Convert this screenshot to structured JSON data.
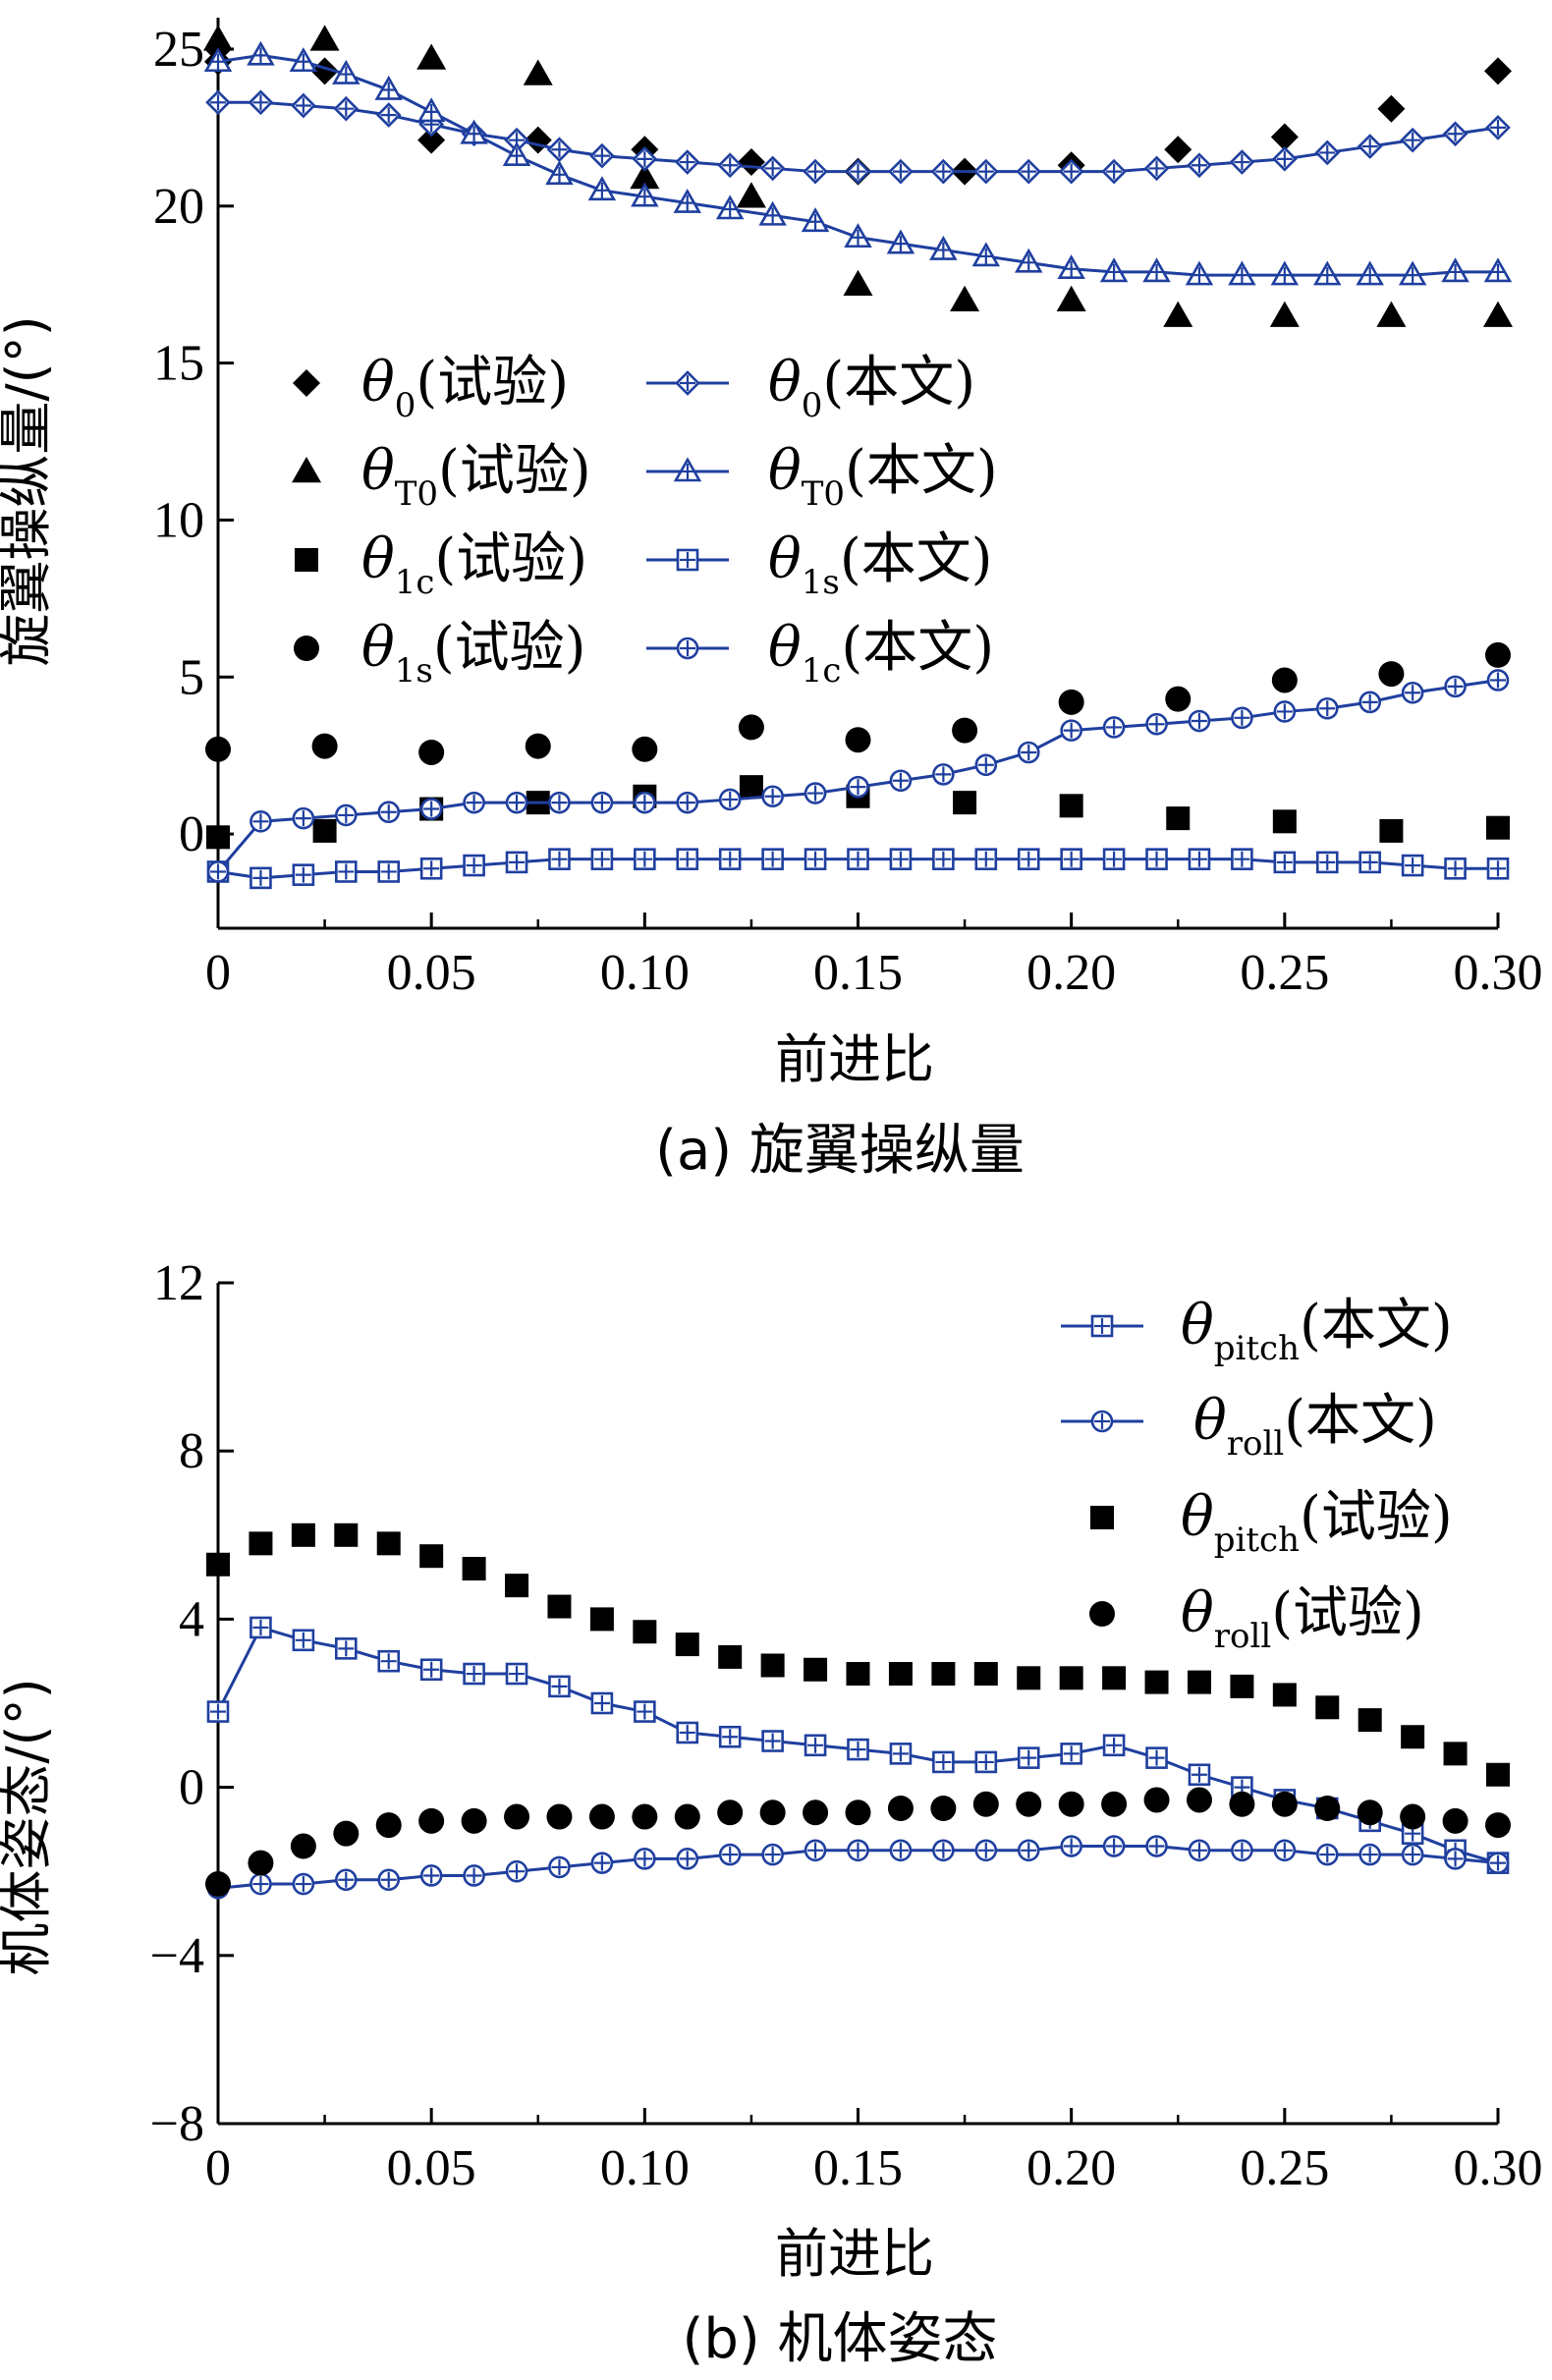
{
  "colors": {
    "model": "#1f3f9f",
    "test": "#000000"
  },
  "charts": [
    {
      "xlabel": "前进比",
      "ylabel": "旋翼操纵量/(°)",
      "caption": "(a) 旋翼操纵量",
      "xticks": [
        "0",
        "0.05",
        "0.10",
        "0.15",
        "0.20",
        "0.25",
        "0.30"
      ],
      "yticks": [
        "0",
        "5",
        "10",
        "15",
        "20",
        "25"
      ],
      "legend": [
        {
          "sym": "θ",
          "sub": "0",
          "suffix": "(试验)"
        },
        {
          "sym": "θ",
          "sub": "T0",
          "suffix": "(试验)"
        },
        {
          "sym": "θ",
          "sub": "1c",
          "suffix": "(试验)"
        },
        {
          "sym": "θ",
          "sub": "1s",
          "suffix": "(试验)"
        },
        {
          "sym": "θ",
          "sub": "0",
          "suffix": "(本文)"
        },
        {
          "sym": "θ",
          "sub": "T0",
          "suffix": "(本文)"
        },
        {
          "sym": "θ",
          "sub": "1s",
          "suffix": "(本文)"
        },
        {
          "sym": "θ",
          "sub": "1c",
          "suffix": "(本文)"
        }
      ]
    },
    {
      "xlabel": "前进比",
      "ylabel": "机体姿态/(°)",
      "caption": "(b) 机体姿态",
      "xticks": [
        "0",
        "0.05",
        "0.10",
        "0.15",
        "0.20",
        "0.25",
        "0.30"
      ],
      "yticks": [
        "−8",
        "−4",
        "0",
        "4",
        "8",
        "12"
      ],
      "legend": [
        {
          "sym": "θ",
          "sub": "pitch",
          "suffix": "(本文)"
        },
        {
          "sym": "θ",
          "sub": "roll",
          "suffix": "(本文)"
        },
        {
          "sym": "θ",
          "sub": "pitch",
          "suffix": "(试验)"
        },
        {
          "sym": "θ",
          "sub": "roll",
          "suffix": "(试验)"
        }
      ]
    }
  ],
  "chart_data": [
    {
      "type": "line",
      "xlabel": "前进比",
      "ylabel": "旋翼操纵量/(°)",
      "xlim": [
        0,
        0.3
      ],
      "ylim": [
        -3,
        26
      ],
      "series": [
        {
          "name": "θ0(试验)",
          "kind": "scatter",
          "marker": "diamond",
          "x": [
            0,
            0,
            0.025,
            0.05,
            0.075,
            0.1,
            0.125,
            0.15,
            0.175,
            0.2,
            0.225,
            0.25,
            0.275,
            0.3
          ],
          "y": [
            25.0,
            24.6,
            24.3,
            22.1,
            22.1,
            21.8,
            21.4,
            21.1,
            21.1,
            21.3,
            21.8,
            22.2,
            23.1,
            24.3
          ]
        },
        {
          "name": "θT0(试验)",
          "kind": "scatter",
          "marker": "triangle",
          "x": [
            0,
            0.025,
            0.05,
            0.075,
            0.1,
            0.125,
            0.15,
            0.175,
            0.2,
            0.225,
            0.25,
            0.275,
            0.3
          ],
          "y": [
            25.3,
            25.3,
            24.7,
            24.2,
            20.9,
            20.3,
            17.5,
            17.0,
            17.0,
            16.5,
            16.5,
            16.5,
            16.5
          ]
        },
        {
          "name": "θ1c(试验)",
          "kind": "scatter",
          "marker": "square",
          "x": [
            0,
            0.025,
            0.05,
            0.075,
            0.1,
            0.125,
            0.15,
            0.175,
            0.2,
            0.225,
            0.25,
            0.275,
            0.3
          ],
          "y": [
            -0.1,
            0.1,
            0.8,
            1.0,
            1.2,
            1.5,
            1.2,
            1.0,
            0.9,
            0.5,
            0.4,
            0.1,
            0.2
          ]
        },
        {
          "name": "θ1s(试验)",
          "kind": "scatter",
          "marker": "circle",
          "x": [
            0,
            0.025,
            0.05,
            0.075,
            0.1,
            0.125,
            0.15,
            0.175,
            0.2,
            0.225,
            0.25,
            0.275,
            0.3
          ],
          "y": [
            2.7,
            2.8,
            2.6,
            2.8,
            2.7,
            3.4,
            3.0,
            3.3,
            4.2,
            4.3,
            4.9,
            5.1,
            5.7
          ]
        },
        {
          "name": "θ0(本文)",
          "kind": "line",
          "marker": "diamond-plus",
          "x": [
            0,
            0.01,
            0.02,
            0.03,
            0.04,
            0.05,
            0.06,
            0.07,
            0.08,
            0.09,
            0.1,
            0.11,
            0.12,
            0.13,
            0.14,
            0.15,
            0.16,
            0.17,
            0.18,
            0.19,
            0.2,
            0.21,
            0.22,
            0.23,
            0.24,
            0.25,
            0.26,
            0.27,
            0.28,
            0.29,
            0.3
          ],
          "y": [
            23.3,
            23.3,
            23.2,
            23.1,
            22.9,
            22.6,
            22.3,
            22.1,
            21.8,
            21.6,
            21.5,
            21.4,
            21.3,
            21.2,
            21.1,
            21.1,
            21.1,
            21.1,
            21.1,
            21.1,
            21.1,
            21.1,
            21.2,
            21.3,
            21.4,
            21.5,
            21.7,
            21.9,
            22.1,
            22.3,
            22.5
          ]
        },
        {
          "name": "θT0(本文)",
          "kind": "line",
          "marker": "triangle-plus",
          "x": [
            0,
            0.01,
            0.02,
            0.03,
            0.04,
            0.05,
            0.06,
            0.07,
            0.08,
            0.09,
            0.1,
            0.11,
            0.12,
            0.13,
            0.14,
            0.15,
            0.16,
            0.17,
            0.18,
            0.19,
            0.2,
            0.21,
            0.22,
            0.23,
            0.24,
            0.25,
            0.26,
            0.27,
            0.28,
            0.29,
            0.3
          ],
          "y": [
            24.6,
            24.8,
            24.6,
            24.2,
            23.7,
            23.0,
            22.3,
            21.6,
            21.0,
            20.5,
            20.3,
            20.1,
            19.9,
            19.7,
            19.5,
            19.0,
            18.8,
            18.6,
            18.4,
            18.2,
            18.0,
            17.9,
            17.9,
            17.8,
            17.8,
            17.8,
            17.8,
            17.8,
            17.8,
            17.9,
            17.9
          ]
        },
        {
          "name": "θ1s(本文)",
          "kind": "line",
          "marker": "square-plus",
          "x": [
            0,
            0.01,
            0.02,
            0.03,
            0.04,
            0.05,
            0.06,
            0.07,
            0.08,
            0.09,
            0.1,
            0.11,
            0.12,
            0.13,
            0.14,
            0.15,
            0.16,
            0.17,
            0.18,
            0.19,
            0.2,
            0.21,
            0.22,
            0.23,
            0.24,
            0.25,
            0.26,
            0.27,
            0.28,
            0.29,
            0.3
          ],
          "y": [
            -1.2,
            -1.4,
            -1.3,
            -1.2,
            -1.2,
            -1.1,
            -1.0,
            -0.9,
            -0.8,
            -0.8,
            -0.8,
            -0.8,
            -0.8,
            -0.8,
            -0.8,
            -0.8,
            -0.8,
            -0.8,
            -0.8,
            -0.8,
            -0.8,
            -0.8,
            -0.8,
            -0.8,
            -0.8,
            -0.9,
            -0.9,
            -0.9,
            -1.0,
            -1.1,
            -1.1
          ]
        },
        {
          "name": "θ1c(本文)",
          "kind": "line",
          "marker": "circle-plus",
          "x": [
            0,
            0.01,
            0.02,
            0.03,
            0.04,
            0.05,
            0.06,
            0.07,
            0.08,
            0.09,
            0.1,
            0.11,
            0.12,
            0.13,
            0.14,
            0.15,
            0.16,
            0.17,
            0.18,
            0.19,
            0.2,
            0.21,
            0.22,
            0.23,
            0.24,
            0.25,
            0.26,
            0.27,
            0.28,
            0.29,
            0.3
          ],
          "y": [
            -1.2,
            0.4,
            0.5,
            0.6,
            0.7,
            0.8,
            1.0,
            1.0,
            1.0,
            1.0,
            1.0,
            1.0,
            1.1,
            1.2,
            1.3,
            1.5,
            1.7,
            1.9,
            2.2,
            2.6,
            3.3,
            3.4,
            3.5,
            3.6,
            3.7,
            3.9,
            4.0,
            4.2,
            4.5,
            4.7,
            4.9
          ]
        }
      ]
    },
    {
      "type": "line",
      "xlabel": "前进比",
      "ylabel": "机体姿态/(°)",
      "xlim": [
        0,
        0.3
      ],
      "ylim": [
        -8,
        12
      ],
      "series": [
        {
          "name": "θpitch(本文)",
          "kind": "line",
          "marker": "square-plus",
          "x": [
            0,
            0.01,
            0.02,
            0.03,
            0.04,
            0.05,
            0.06,
            0.07,
            0.08,
            0.09,
            0.1,
            0.11,
            0.12,
            0.13,
            0.14,
            0.15,
            0.16,
            0.17,
            0.18,
            0.19,
            0.2,
            0.21,
            0.22,
            0.23,
            0.24,
            0.25,
            0.26,
            0.27,
            0.28,
            0.29,
            0.3
          ],
          "y": [
            1.8,
            3.8,
            3.5,
            3.3,
            3.0,
            2.8,
            2.7,
            2.7,
            2.4,
            2.0,
            1.8,
            1.3,
            1.2,
            1.1,
            1.0,
            0.9,
            0.8,
            0.6,
            0.6,
            0.7,
            0.8,
            1.0,
            0.7,
            0.3,
            0.0,
            -0.3,
            -0.5,
            -0.8,
            -1.1,
            -1.5,
            -1.8
          ]
        },
        {
          "name": "θroll(本文)",
          "kind": "line",
          "marker": "circle-plus",
          "x": [
            0,
            0.01,
            0.02,
            0.03,
            0.04,
            0.05,
            0.06,
            0.07,
            0.08,
            0.09,
            0.1,
            0.11,
            0.12,
            0.13,
            0.14,
            0.15,
            0.16,
            0.17,
            0.18,
            0.19,
            0.2,
            0.21,
            0.22,
            0.23,
            0.24,
            0.25,
            0.26,
            0.27,
            0.28,
            0.29,
            0.3
          ],
          "y": [
            -2.4,
            -2.3,
            -2.3,
            -2.2,
            -2.2,
            -2.1,
            -2.1,
            -2.0,
            -1.9,
            -1.8,
            -1.7,
            -1.7,
            -1.6,
            -1.6,
            -1.5,
            -1.5,
            -1.5,
            -1.5,
            -1.5,
            -1.5,
            -1.4,
            -1.4,
            -1.4,
            -1.5,
            -1.5,
            -1.5,
            -1.6,
            -1.6,
            -1.6,
            -1.7,
            -1.8
          ]
        },
        {
          "name": "θpitch(试验)",
          "kind": "scatter",
          "marker": "square",
          "x": [
            0,
            0.01,
            0.02,
            0.03,
            0.04,
            0.05,
            0.06,
            0.07,
            0.08,
            0.09,
            0.1,
            0.11,
            0.12,
            0.13,
            0.14,
            0.15,
            0.16,
            0.17,
            0.18,
            0.19,
            0.2,
            0.21,
            0.22,
            0.23,
            0.24,
            0.25,
            0.26,
            0.27,
            0.28,
            0.29,
            0.3
          ],
          "y": [
            5.3,
            5.8,
            6.0,
            6.0,
            5.8,
            5.5,
            5.2,
            4.8,
            4.3,
            4.0,
            3.7,
            3.4,
            3.1,
            2.9,
            2.8,
            2.7,
            2.7,
            2.7,
            2.7,
            2.6,
            2.6,
            2.6,
            2.5,
            2.5,
            2.4,
            2.2,
            1.9,
            1.6,
            1.2,
            0.8,
            0.3
          ]
        },
        {
          "name": "θroll(试验)",
          "kind": "scatter",
          "marker": "circle",
          "x": [
            0,
            0.01,
            0.02,
            0.03,
            0.04,
            0.05,
            0.06,
            0.07,
            0.08,
            0.09,
            0.1,
            0.11,
            0.12,
            0.13,
            0.14,
            0.15,
            0.16,
            0.17,
            0.18,
            0.19,
            0.2,
            0.21,
            0.22,
            0.23,
            0.24,
            0.25,
            0.26,
            0.27,
            0.28,
            0.29,
            0.3
          ],
          "y": [
            -2.3,
            -1.8,
            -1.4,
            -1.1,
            -0.9,
            -0.8,
            -0.8,
            -0.7,
            -0.7,
            -0.7,
            -0.7,
            -0.7,
            -0.6,
            -0.6,
            -0.6,
            -0.6,
            -0.5,
            -0.5,
            -0.4,
            -0.4,
            -0.4,
            -0.4,
            -0.3,
            -0.3,
            -0.4,
            -0.4,
            -0.5,
            -0.6,
            -0.7,
            -0.8,
            -0.9
          ]
        }
      ]
    }
  ]
}
